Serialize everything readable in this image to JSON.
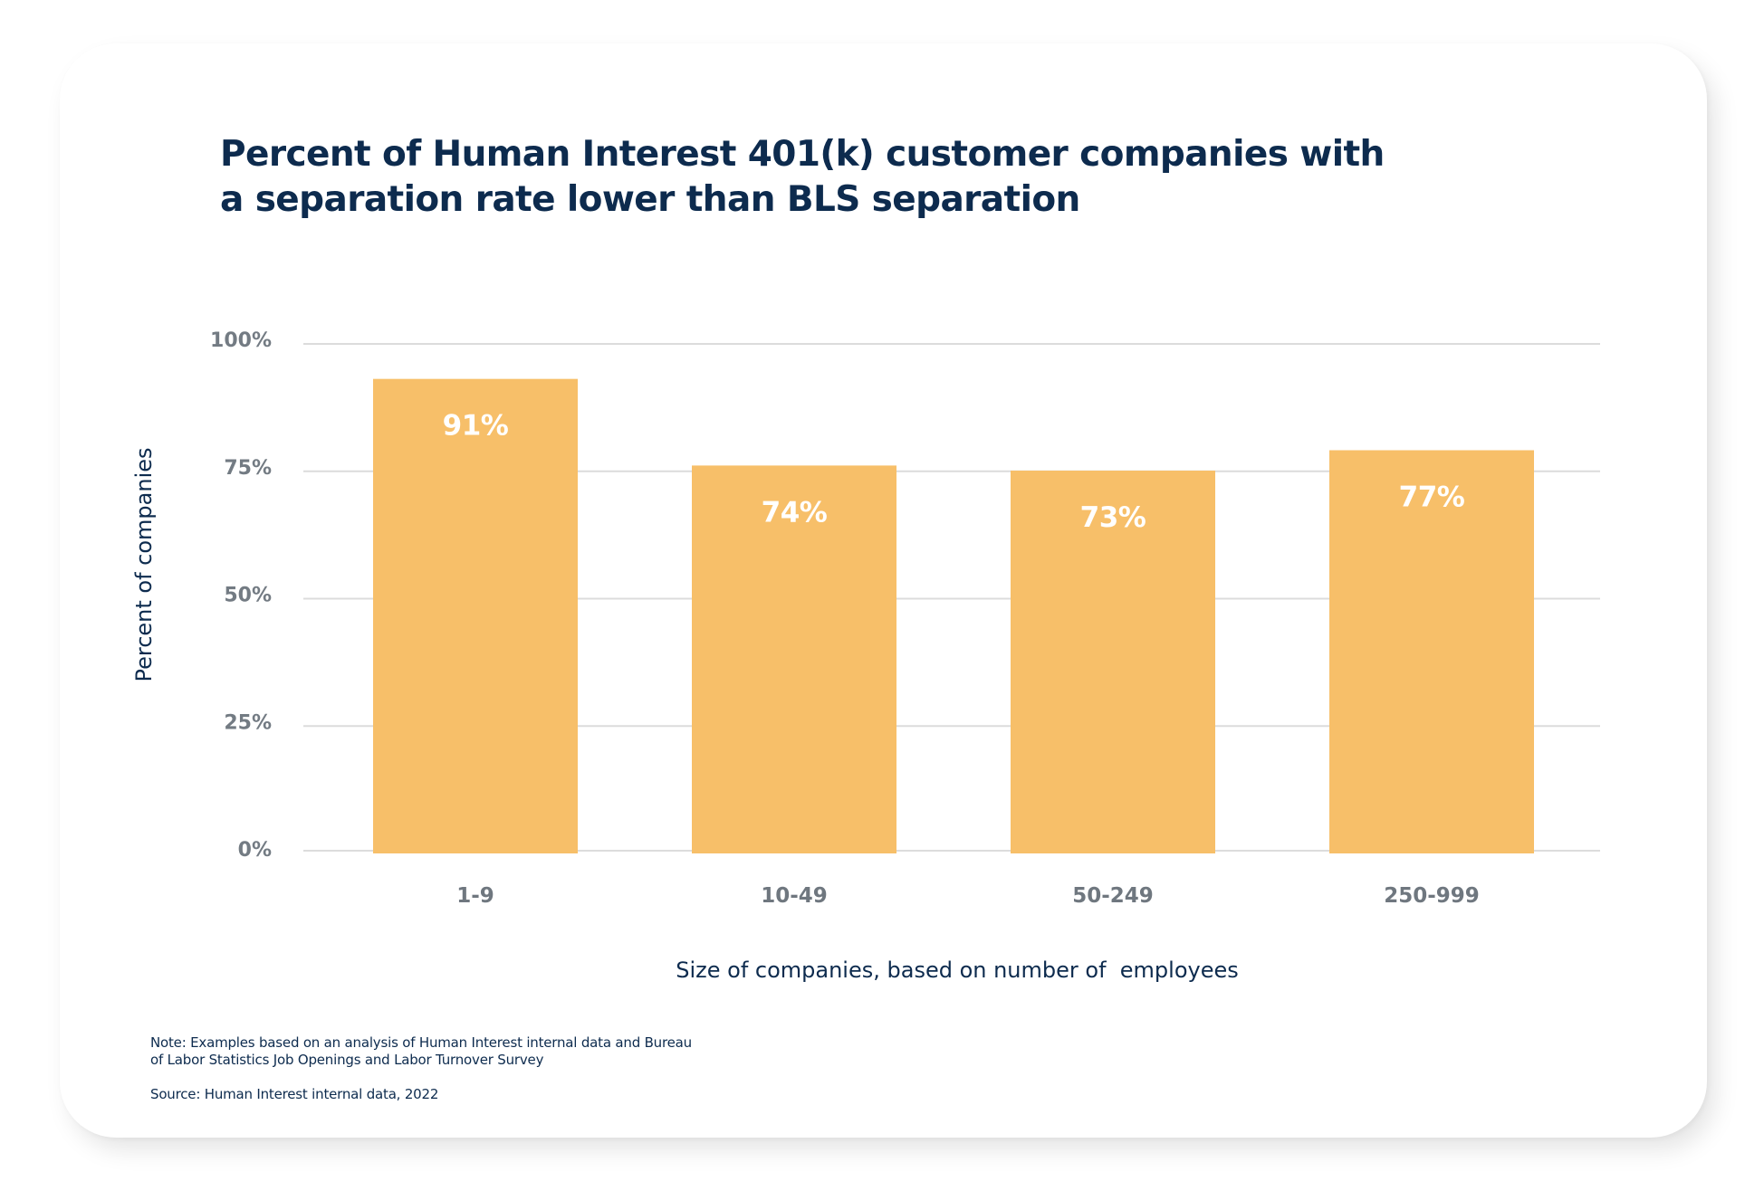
{
  "colors": {
    "bar": "#f7bf69",
    "title": "#0d2b4e",
    "tick_label": "#737b83",
    "gridline": "#dcdcdc",
    "bar_label": "#ffffff"
  },
  "title_lines": [
    "Percent of Human Interest 401(k) customer companies with",
    "a separation rate lower than BLS separation"
  ],
  "notes": {
    "note_lines": [
      "Note: Examples based on an analysis of Human Interest internal data and Bureau",
      "of Labor Statistics Job Openings and Labor Turnover Survey"
    ],
    "source": "Source: Human Interest internal data, 2022"
  },
  "chart_data": {
    "type": "bar",
    "title": "Percent of Human Interest 401(k) customer companies with a separation rate lower than BLS separation",
    "categories": [
      "1-9",
      "10-49",
      "50-249",
      "250-999"
    ],
    "values": [
      91,
      74,
      73,
      77
    ],
    "value_labels": [
      "91%",
      "74%",
      "73%",
      "77%"
    ],
    "xlabel": "Size of companies, based on number of  employees",
    "ylabel": "Percent of companies",
    "ylim": [
      0,
      100
    ],
    "yticks": [
      0,
      25,
      50,
      75,
      100
    ],
    "ytick_labels": [
      "0%",
      "25%",
      "50%",
      "75%",
      "100%"
    ],
    "grid": true,
    "legend": "none"
  }
}
